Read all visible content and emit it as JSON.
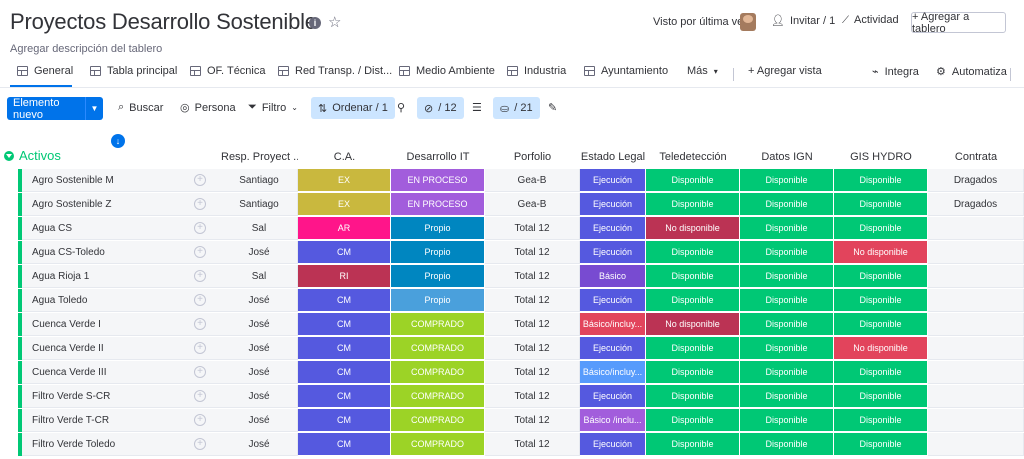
{
  "header": {
    "title": "Proyectos Desarrollo Sostenible",
    "description_placeholder": "Agregar descripción del tablero",
    "last_seen": "Visto por última vez",
    "invite": "Invitar / 1",
    "activity": "Actividad",
    "add_board": "+ Agregar a tablero"
  },
  "tabs": [
    "General",
    "Tabla principal",
    "OF. Técnica",
    "Red Transp. / Dist...",
    "Medio Ambiente",
    "Industria",
    "Ayuntamiento",
    "Más",
    "+ Agregar vista",
    "Integra",
    "Automatiza"
  ],
  "toolbar": {
    "new_item": "Elemento nuevo",
    "search": "Buscar",
    "person": "Persona",
    "filter": "Filtro",
    "sort": "Ordenar / 1",
    "hidden": "/ 12",
    "color": "/ 21"
  },
  "group": {
    "title": "Activos"
  },
  "columns": [
    "Resp. Proyect ...",
    "C.A.",
    "Desarrollo IT",
    "Porfolio",
    "Estado Legal",
    "Teledetección",
    "Datos IGN",
    "GIS HYDRO",
    "Contrata"
  ],
  "colors": {
    "EX": "#c9b83e",
    "AR": "#ff158a",
    "CM": "#5559df",
    "RI": "#bb3354",
    "EN PROCESO": "#a25ddc",
    "Propio": "#0086c0",
    "Propio-light": "#4aa0dc",
    "COMPRADO": "#9cd326",
    "Ejecución": "#5559df",
    "Básico": "#784bd1",
    "Básico/incluy...": "#e2445c",
    "Básico/incluy": "#579bfc",
    "Básico /inclu...": "#a25ddc",
    "Disponible": "#00c875",
    "No disponible": "#e2445c",
    "No disponible-dark": "#bb3354"
  },
  "rows": [
    {
      "name": "Agro Sostenible M",
      "resp": "Santiago",
      "ca": "EX",
      "it": "EN PROCESO",
      "porfolio": "Gea-B",
      "legal": "Ejecución",
      "tele": "Disponible",
      "ign": "Disponible",
      "gis": "Disponible",
      "contrata": "Dragados"
    },
    {
      "name": "Agro Sostenible Z",
      "resp": "Santiago",
      "ca": "EX",
      "it": "EN PROCESO",
      "porfolio": "Gea-B",
      "legal": "Ejecución",
      "tele": "Disponible",
      "ign": "Disponible",
      "gis": "Disponible",
      "contrata": "Dragados"
    },
    {
      "name": "Agua CS",
      "resp": "Sal",
      "ca": "AR",
      "it": "Propio",
      "porfolio": "Total 12",
      "legal": "Ejecución",
      "tele": "No disponible",
      "ign": "Disponible",
      "gis": "Disponible",
      "contrata": ""
    },
    {
      "name": "Agua CS-Toledo",
      "resp": "José",
      "ca": "CM",
      "it": "Propio",
      "porfolio": "Total 12",
      "legal": "Ejecución",
      "tele": "Disponible",
      "ign": "Disponible",
      "gis": "No disponible",
      "contrata": ""
    },
    {
      "name": "Agua Rioja 1",
      "resp": "Sal",
      "ca": "RI",
      "it": "Propio",
      "porfolio": "Total 12",
      "legal": "Básico",
      "tele": "Disponible",
      "ign": "Disponible",
      "gis": "Disponible",
      "contrata": ""
    },
    {
      "name": "Agua Toledo",
      "resp": "José",
      "ca": "CM",
      "it": "Propio",
      "porfolio": "Total 12",
      "legal": "Ejecución",
      "tele": "Disponible",
      "ign": "Disponible",
      "gis": "Disponible",
      "contrata": ""
    },
    {
      "name": "Cuenca Verde I",
      "resp": "José",
      "ca": "CM",
      "it": "COMPRADO",
      "porfolio": "Total 12",
      "legal": "Básico/incluy...",
      "tele": "No disponible",
      "ign": "Disponible",
      "gis": "Disponible",
      "contrata": ""
    },
    {
      "name": "Cuenca Verde II",
      "resp": "José",
      "ca": "CM",
      "it": "COMPRADO",
      "porfolio": "Total 12",
      "legal": "Ejecución",
      "tele": "Disponible",
      "ign": "Disponible",
      "gis": "No disponible",
      "contrata": ""
    },
    {
      "name": "Cuenca Verde III",
      "resp": "José",
      "ca": "CM",
      "it": "COMPRADO",
      "porfolio": "Total 12",
      "legal": "Básico/incluy...",
      "tele": "Disponible",
      "ign": "Disponible",
      "gis": "Disponible",
      "contrata": ""
    },
    {
      "name": "Filtro Verde S-CR",
      "resp": "José",
      "ca": "CM",
      "it": "COMPRADO",
      "porfolio": "Total 12",
      "legal": "Ejecución",
      "tele": "Disponible",
      "ign": "Disponible",
      "gis": "Disponible",
      "contrata": ""
    },
    {
      "name": "Filtro Verde T-CR",
      "resp": "José",
      "ca": "CM",
      "it": "COMPRADO",
      "porfolio": "Total 12",
      "legal": "Básico /inclu...",
      "tele": "Disponible",
      "ign": "Disponible",
      "gis": "Disponible",
      "contrata": ""
    },
    {
      "name": "Filtro Verde Toledo",
      "resp": "José",
      "ca": "CM",
      "it": "COMPRADO",
      "porfolio": "Total 12",
      "legal": "Ejecución",
      "tele": "Disponible",
      "ign": "Disponible",
      "gis": "Disponible",
      "contrata": ""
    }
  ]
}
